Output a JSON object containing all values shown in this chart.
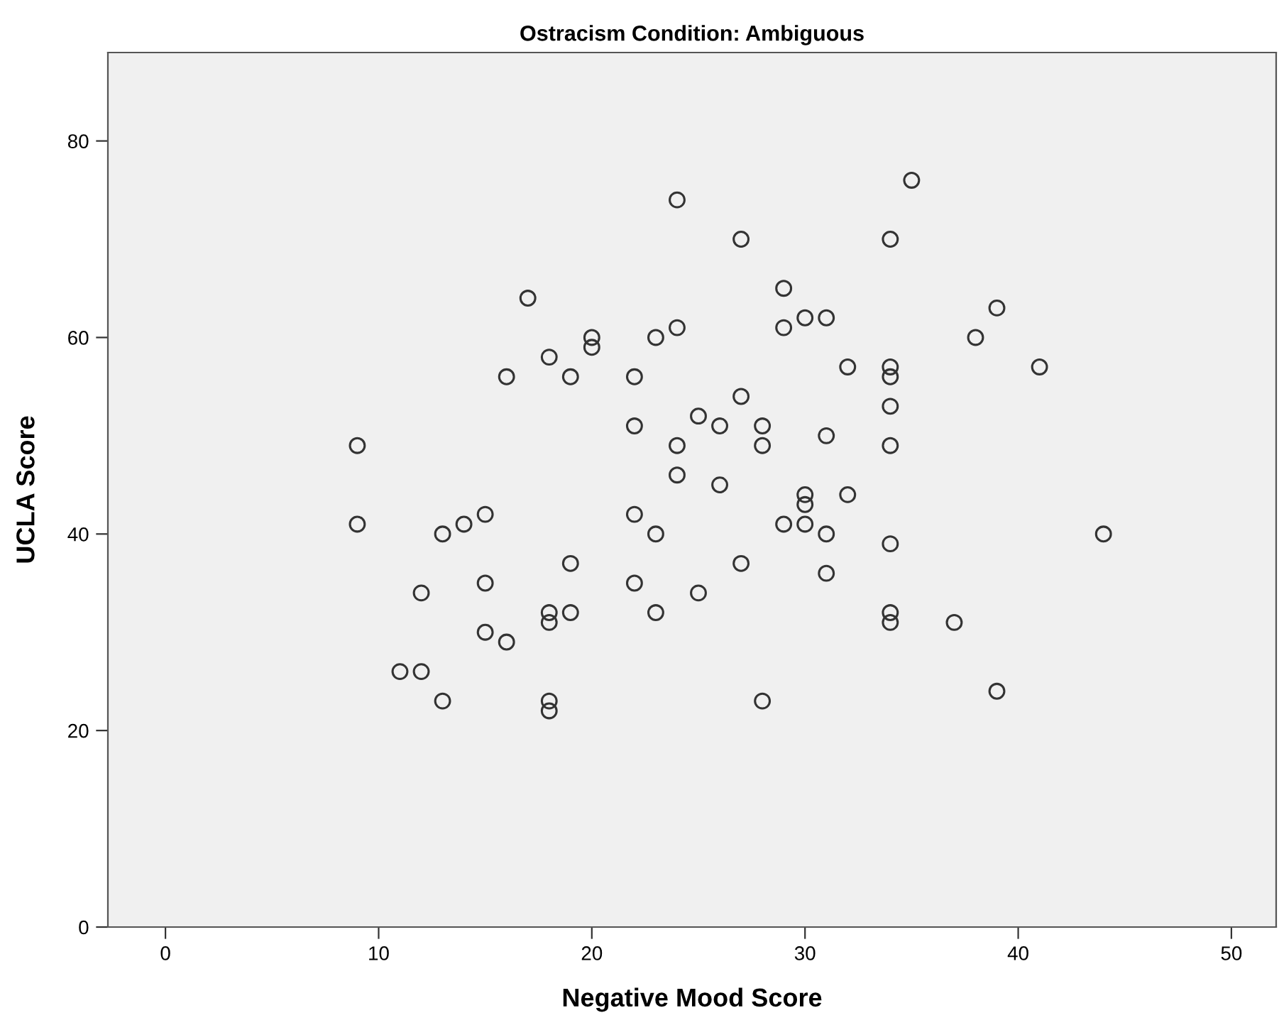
{
  "chart_data": {
    "type": "scatter",
    "title": "Ostracism Condition: Ambiguous",
    "xlabel": "Negative Mood Score",
    "ylabel": "UCLA Score",
    "x": [
      9,
      9,
      11,
      12,
      12,
      13,
      13,
      14,
      15,
      15,
      15,
      16,
      16,
      17,
      18,
      18,
      18,
      18,
      18,
      19,
      19,
      19,
      20,
      20,
      22,
      22,
      22,
      22,
      23,
      23,
      23,
      24,
      24,
      24,
      24,
      25,
      25,
      26,
      26,
      27,
      27,
      27,
      28,
      28,
      28,
      29,
      29,
      29,
      30,
      30,
      30,
      30,
      31,
      31,
      31,
      31,
      32,
      32,
      34,
      34,
      34,
      34,
      34,
      34,
      34,
      34,
      35,
      37,
      38,
      39,
      39,
      41,
      44
    ],
    "values": [
      49,
      41,
      26,
      26,
      34,
      40,
      23,
      41,
      42,
      35,
      30,
      56,
      29,
      64,
      58,
      32,
      31,
      23,
      22,
      56,
      37,
      32,
      60,
      59,
      56,
      51,
      42,
      35,
      60,
      40,
      32,
      74,
      61,
      49,
      46,
      52,
      34,
      51,
      45,
      70,
      54,
      37,
      51,
      49,
      23,
      65,
      61,
      41,
      62,
      44,
      43,
      41,
      62,
      50,
      40,
      36,
      57,
      44,
      70,
      57,
      56,
      53,
      49,
      39,
      32,
      31,
      76,
      31,
      60,
      63,
      24,
      57,
      40
    ],
    "color": "#333333",
    "marker": "circle",
    "xlim": [
      -2.7,
      52.1
    ],
    "ylim": [
      0,
      89
    ],
    "xticks": [
      0,
      10,
      20,
      30,
      40,
      50
    ],
    "yticks": [
      0,
      20,
      40,
      60,
      80
    ],
    "grid": false
  }
}
